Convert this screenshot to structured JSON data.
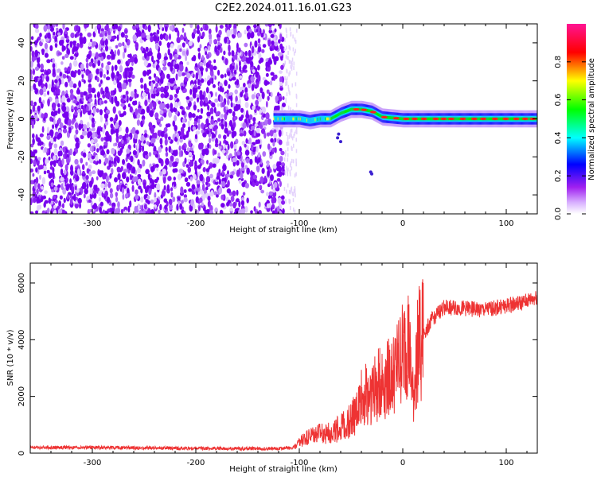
{
  "title": "C2E2.2024.011.16.01.G23",
  "chart_data": [
    {
      "type": "heatmap",
      "xlabel": "Height of straight line (km)",
      "ylabel": "Frequency (Hz)",
      "xlim": [
        -360,
        130
      ],
      "ylim": [
        -50,
        50
      ],
      "x_ticks": [
        "-300",
        "-200",
        "-100",
        "0",
        "100"
      ],
      "y_ticks": [
        "-40",
        "-20",
        "0",
        "20",
        "40"
      ],
      "colorbar": {
        "label": "Normalized spectral amplitude",
        "range": [
          0,
          1
        ],
        "ticks": [
          "0.0",
          "0.2",
          "0.4",
          "0.6",
          "0.8"
        ],
        "colors": [
          "#ffffff",
          "#a020f0",
          "#0000ff",
          "#00ffff",
          "#00ff00",
          "#ffff00",
          "#ff0000",
          "#ff1493"
        ]
      },
      "noise_region_x": [
        -360,
        -115
      ],
      "signal_trace": {
        "x": [
          -125,
          -110,
          -100,
          -90,
          -80,
          -70,
          -60,
          -50,
          -40,
          -30,
          -20,
          0,
          20,
          50,
          80,
          100,
          130
        ],
        "freq_hz": [
          0,
          0,
          0,
          -1,
          0,
          0,
          3,
          5,
          5,
          4,
          1,
          0,
          0,
          0,
          0,
          0,
          0
        ]
      },
      "grid": false
    },
    {
      "type": "line",
      "xlabel": "Height of straight line (km)",
      "ylabel": "SNR (10 * v/v)",
      "xlim": [
        -360,
        130
      ],
      "ylim": [
        0,
        6700
      ],
      "x_ticks": [
        "-300",
        "-200",
        "-100",
        "0",
        "100"
      ],
      "y_ticks": [
        "0",
        "2000",
        "4000",
        "6000"
      ],
      "color": "#ee3333",
      "series": [
        {
          "x": [
            -360,
            -300,
            -250,
            -200,
            -150,
            -120,
            -105,
            -95,
            -85,
            -75,
            -65,
            -55,
            -45,
            -40,
            -30,
            -20,
            -10,
            -5,
            0,
            5,
            10,
            15,
            20,
            30,
            40,
            60,
            80,
            100,
            115,
            130
          ],
          "y": [
            200,
            200,
            180,
            170,
            160,
            160,
            200,
            500,
            650,
            700,
            800,
            1000,
            1400,
            2000,
            2200,
            2500,
            2700,
            3100,
            3500,
            4100,
            1900,
            3800,
            4200,
            4800,
            5150,
            5100,
            5050,
            5200,
            5300,
            5500
          ]
        }
      ],
      "grid": false
    }
  ]
}
